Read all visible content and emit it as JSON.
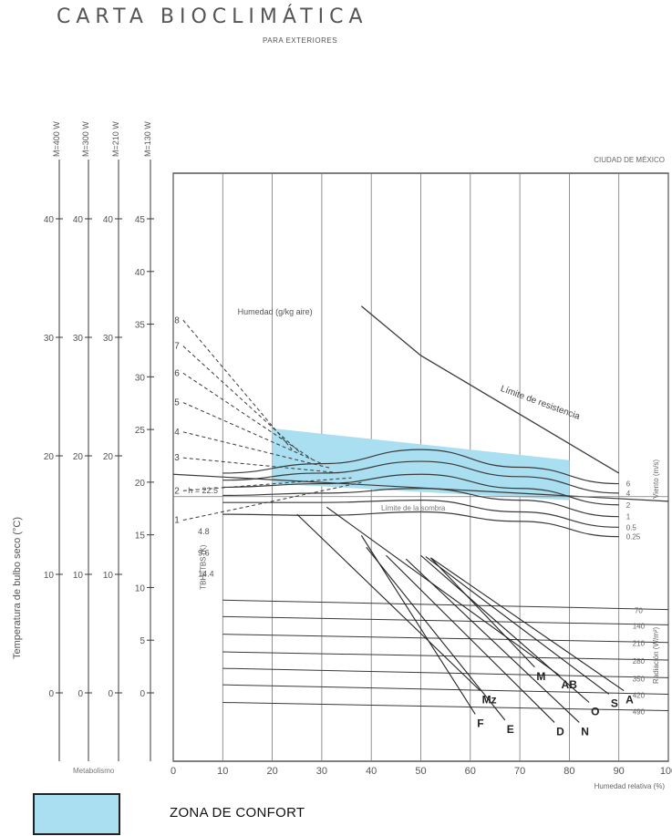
{
  "page": {
    "title": "CARTA BIOCLIMÁTICA",
    "subtitle": "PARA EXTERIORES",
    "location": "CIUDAD DE MÉXICO",
    "legend_label": "ZONA DE CONFORT",
    "comfort_color": "#a9dff0"
  },
  "chart_data": {
    "type": "line",
    "title": "CARTA BIOCLIMÁTICA",
    "subtitle": "PARA EXTERIORES",
    "xlabel": "Humedad relativa (%)",
    "ylabel": "Temperatura de bulbo seco (°C)",
    "xlim": [
      0,
      100
    ],
    "ylim": [
      0,
      50
    ],
    "x_ticks": [
      0,
      10,
      20,
      30,
      40,
      50,
      60,
      70,
      80,
      90,
      100
    ],
    "y_ticks": [
      0,
      5,
      10,
      15,
      20,
      25,
      30,
      35,
      40,
      45
    ],
    "metabolic_scales": [
      {
        "label": "M=400 W",
        "ticks": [
          "0",
          "10",
          "20",
          "30",
          "40"
        ]
      },
      {
        "label": "M=300 W",
        "ticks": [
          "0",
          "10",
          "20",
          "30",
          "40"
        ]
      },
      {
        "label": "M=210 W",
        "ticks": [
          "0",
          "10",
          "20",
          "30",
          "40"
        ]
      },
      {
        "label": "M=130 W",
        "ticks": [
          "0",
          "5",
          "10",
          "15",
          "20",
          "25",
          "30",
          "35",
          "40",
          "45"
        ]
      }
    ],
    "metabolic_axis_label": "Metabolismo",
    "comfort_zone": {
      "x": [
        20,
        80
      ],
      "y_top_left": 28.3,
      "y_top_right": 25.6,
      "y_bottom_left": 23.6,
      "y_bottom_right": 22.2
    },
    "hr_line": {
      "label": "h = 22.5",
      "y": 22.5
    },
    "shade_line_label": "TBH=TBS (K)",
    "tbs_line_label": "Límite de la sombra",
    "tbs_line_start": 24.4,
    "humidity_label": "Humedad (g/kg aire)",
    "humidity_lines": [
      {
        "label": "8",
        "y_start": 37.5
      },
      {
        "label": "7",
        "y_start": 35.3
      },
      {
        "label": "6",
        "y_start": 33.0
      },
      {
        "label": "5",
        "y_start": 30.5
      },
      {
        "label": "4",
        "y_start": 28.0
      },
      {
        "label": "3",
        "y_start": 25.8
      },
      {
        "label": "2",
        "y_start": 23.0
      },
      {
        "label": "1",
        "y_start": 20.5
      }
    ],
    "resistance_line": {
      "label": "Límite de resistencia",
      "x": [
        38,
        50,
        60,
        70,
        80,
        90
      ],
      "y": [
        38.7,
        34.5,
        32.0,
        29.5,
        27.0,
        24.5
      ]
    },
    "wind_curves": [
      {
        "label": "6",
        "x": [
          10,
          30,
          50,
          70,
          90
        ],
        "y": [
          24.5,
          25.3,
          26.5,
          25.0,
          23.6
        ]
      },
      {
        "label": "4",
        "x": [
          10,
          30,
          50,
          70,
          90
        ],
        "y": [
          23.9,
          24.5,
          25.5,
          24.2,
          22.8
        ]
      },
      {
        "label": "2",
        "x": [
          10,
          30,
          50,
          70,
          90
        ],
        "y": [
          23.3,
          23.6,
          24.4,
          23.2,
          21.8
        ]
      },
      {
        "label": "1",
        "x": [
          10,
          30,
          50,
          70,
          90
        ],
        "y": [
          22.6,
          22.8,
          23.2,
          22.2,
          20.8
        ]
      },
      {
        "label": "0.5",
        "x": [
          10,
          30,
          50,
          70,
          90
        ],
        "y": [
          22.0,
          22.0,
          22.2,
          21.2,
          19.9
        ]
      },
      {
        "label": "0.25",
        "x": [
          10,
          30,
          50,
          70,
          90
        ],
        "y": [
          21.0,
          20.9,
          21.2,
          20.4,
          19.1
        ]
      }
    ],
    "wind_axis_label": "Viento (m/s)",
    "radiation_lines": [
      {
        "label": "70",
        "y0": 13.7,
        "y1": 12.9
      },
      {
        "label": "140",
        "y0": 12.3,
        "y1": 11.6
      },
      {
        "label": "210",
        "y0": 10.8,
        "y1": 10.1
      },
      {
        "label": "280",
        "y0": 9.3,
        "y1": 8.6
      },
      {
        "label": "350",
        "y0": 7.9,
        "y1": 7.1
      },
      {
        "label": "420",
        "y0": 6.5,
        "y1": 5.7
      },
      {
        "label": "490",
        "y0": 5.0,
        "y1": 4.3
      }
    ],
    "radiation_axis_label": "Radiación (W/m²)",
    "shade_left_labels": [
      "4.8",
      "9.6",
      "14.4"
    ],
    "months": [
      {
        "label": "AB",
        "x": 31,
        "y": 21.6,
        "x_end": 78,
        "y_end": 7.3
      },
      {
        "label": "Mz",
        "x": 25,
        "y": 21.0,
        "x_end": 62,
        "y_end": 6.0
      },
      {
        "label": "F",
        "x": 38,
        "y": 19.2,
        "x_end": 61,
        "y_end": 4.0
      },
      {
        "label": "E",
        "x": 39,
        "y": 18.2,
        "x_end": 67,
        "y_end": 3.5
      },
      {
        "label": "D",
        "x": 43,
        "y": 17.5,
        "x_end": 77,
        "y_end": 3.3
      },
      {
        "label": "N",
        "x": 47,
        "y": 17.2,
        "x_end": 82,
        "y_end": 3.3
      },
      {
        "label": "O",
        "x": 50,
        "y": 17.5,
        "x_end": 84,
        "y_end": 5.0
      },
      {
        "label": "S",
        "x": 51,
        "y": 17.4,
        "x_end": 88,
        "y_end": 5.7
      },
      {
        "label": "A",
        "x": 52,
        "y": 17.3,
        "x_end": 91,
        "y_end": 6.0
      },
      {
        "label": "M",
        "x": 52,
        "y": 17.3,
        "x_end": 73,
        "y_end": 8.0
      }
    ]
  }
}
